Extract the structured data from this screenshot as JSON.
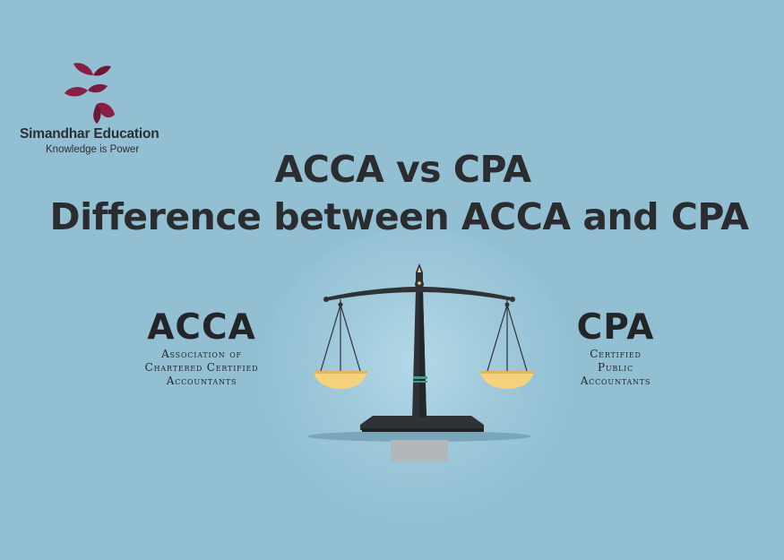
{
  "brand": {
    "name": "Simandhar Education",
    "tagline": "Knowledge is Power",
    "logo_icon": "leaf-petals-logo",
    "colors": {
      "logo": "#8a1f44",
      "logo_dark": "#6e1636"
    }
  },
  "headline": {
    "line1": "ACCA vs CPA",
    "line2": "Difference between ACCA and CPA"
  },
  "left": {
    "abbr": "ACCA",
    "full": [
      "Association of",
      "Chartered Certified",
      "Accountants"
    ]
  },
  "right": {
    "abbr": "CPA",
    "full": [
      "Certified",
      "Public",
      "Accountants"
    ]
  },
  "illustration": {
    "icon": "balance-scale-icon"
  },
  "colors": {
    "background": "#92bfd2",
    "text": "#2a2c2f",
    "scale": "#2f3236",
    "pan": "#f5d27c"
  }
}
